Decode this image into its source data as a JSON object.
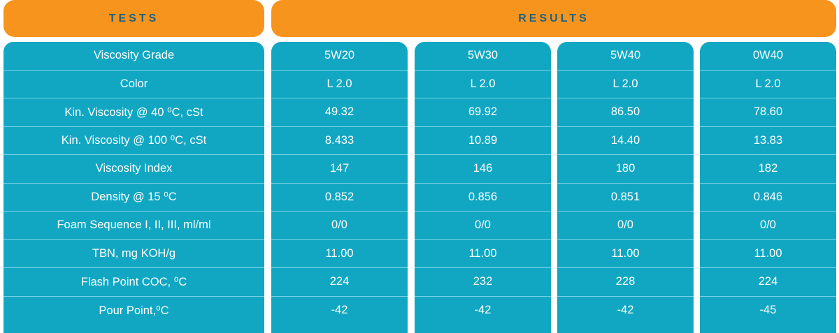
{
  "header": {
    "tests": "TESTS",
    "results": "RESULTS"
  },
  "tests": [
    "Viscosity Grade",
    "Color",
    "Kin. Viscosity @ 40 ⁰C, cSt",
    "Kin. Viscosity @ 100 ⁰C, cSt",
    "Viscosity Index",
    "Density @ 15 ⁰C",
    "Foam Sequence I, II, III, ml/ml",
    "TBN, mg KOH/g",
    "Flash Point COC, ⁰C",
    "Pour Point,⁰C"
  ],
  "results": [
    [
      "5W20",
      "L 2.0",
      "49.32",
      "8.433",
      "147",
      "0.852",
      "0/0",
      "11.00",
      "224",
      "-42"
    ],
    [
      "5W30",
      "L 2.0",
      "69.92",
      "10.89",
      "146",
      "0.856",
      "0/0",
      "11.00",
      "232",
      "-42"
    ],
    [
      "5W40",
      "L 2.0",
      "86.50",
      "14.40",
      "180",
      "0.851",
      "0/0",
      "11.00",
      "228",
      "-42"
    ],
    [
      "0W40",
      "L 2.0",
      "78.60",
      "13.83",
      "182",
      "0.846",
      "0/0",
      "11.00",
      "224",
      "-45"
    ]
  ],
  "colors": {
    "header_bg": "#f7941e",
    "header_text": "#1e6280",
    "cell_bg": "#11a7c3",
    "cell_text": "#ffffff"
  }
}
